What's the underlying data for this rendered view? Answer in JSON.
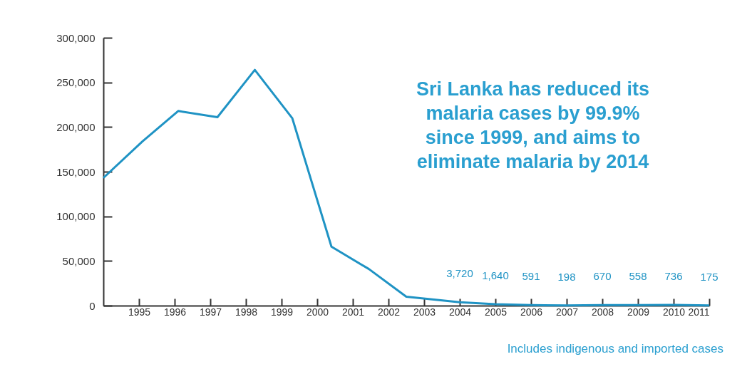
{
  "chart_data": {
    "type": "line",
    "annotations": [
      "Sri Lanka has reduced its malaria cases by 99.9% since 1999, and aims to eliminate malaria by 2014",
      "Includes indigenous and imported cases"
    ],
    "x": [
      1994,
      1995.1,
      1996.1,
      1997.2,
      1998.25,
      1999.3,
      2000.4,
      2001.45,
      2002.5,
      2004,
      2005,
      2006,
      2007,
      2008,
      2009,
      2010,
      2011
    ],
    "series": [
      {
        "color": "#1f93c4",
        "values": [
          143000,
          184000,
          218000,
          211000,
          264000,
          210000,
          66000,
          41000,
          10000,
          3720,
          1640,
          591,
          198,
          670,
          558,
          736,
          175
        ],
        "value_labels": [
          null,
          null,
          null,
          null,
          null,
          null,
          null,
          null,
          null,
          "3,720",
          "1,640",
          "591",
          "198",
          "670",
          "558",
          "736",
          "175"
        ]
      }
    ],
    "xlim": [
      1994,
      2011
    ],
    "xticks": [
      1995,
      1996,
      1997,
      1998,
      1999,
      2000,
      2001,
      2002,
      2003,
      2004,
      2005,
      2006,
      2007,
      2008,
      2009,
      2010,
      2011
    ],
    "ylim": [
      0,
      300000
    ],
    "yticks": [
      0,
      {
        "value": 50000,
        "label": "50,000"
      },
      {
        "value": 100000,
        "label": "100,000"
      },
      {
        "value": 150000,
        "label": "150,000"
      },
      {
        "value": 200000,
        "label": "200,000"
      },
      {
        "value": 250000,
        "label": "250,000"
      },
      {
        "value": 300000,
        "label": "300,000"
      }
    ],
    "grid": false,
    "marker": "none",
    "line_style": "solid"
  }
}
